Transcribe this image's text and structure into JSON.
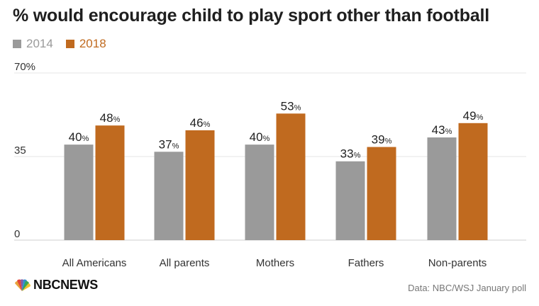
{
  "title": "% would encourage child to play sport other than football",
  "legend": {
    "items": [
      {
        "label": "2014",
        "color": "#9a9a9a"
      },
      {
        "label": "2018",
        "color": "#c06a1f"
      }
    ]
  },
  "source": "Data: NBC/WSJ January poll",
  "brand": {
    "text": "NBCNEWS"
  },
  "chart_data": {
    "type": "bar",
    "categories": [
      "All Americans",
      "All parents",
      "Mothers",
      "Fathers",
      "Non-parents"
    ],
    "series": [
      {
        "name": "2014",
        "values": [
          40,
          37,
          40,
          33,
          43
        ],
        "color": "#9a9a9a"
      },
      {
        "name": "2018",
        "values": [
          48,
          46,
          53,
          39,
          49
        ],
        "color": "#c06a1f"
      }
    ],
    "value_suffix": "%",
    "y_ticks": [
      {
        "value": 0,
        "label": "0"
      },
      {
        "value": 35,
        "label": "35"
      },
      {
        "value": 70,
        "label": "70%"
      }
    ],
    "ylim": [
      0,
      70
    ],
    "grid": true,
    "legend_position": "top-left"
  }
}
